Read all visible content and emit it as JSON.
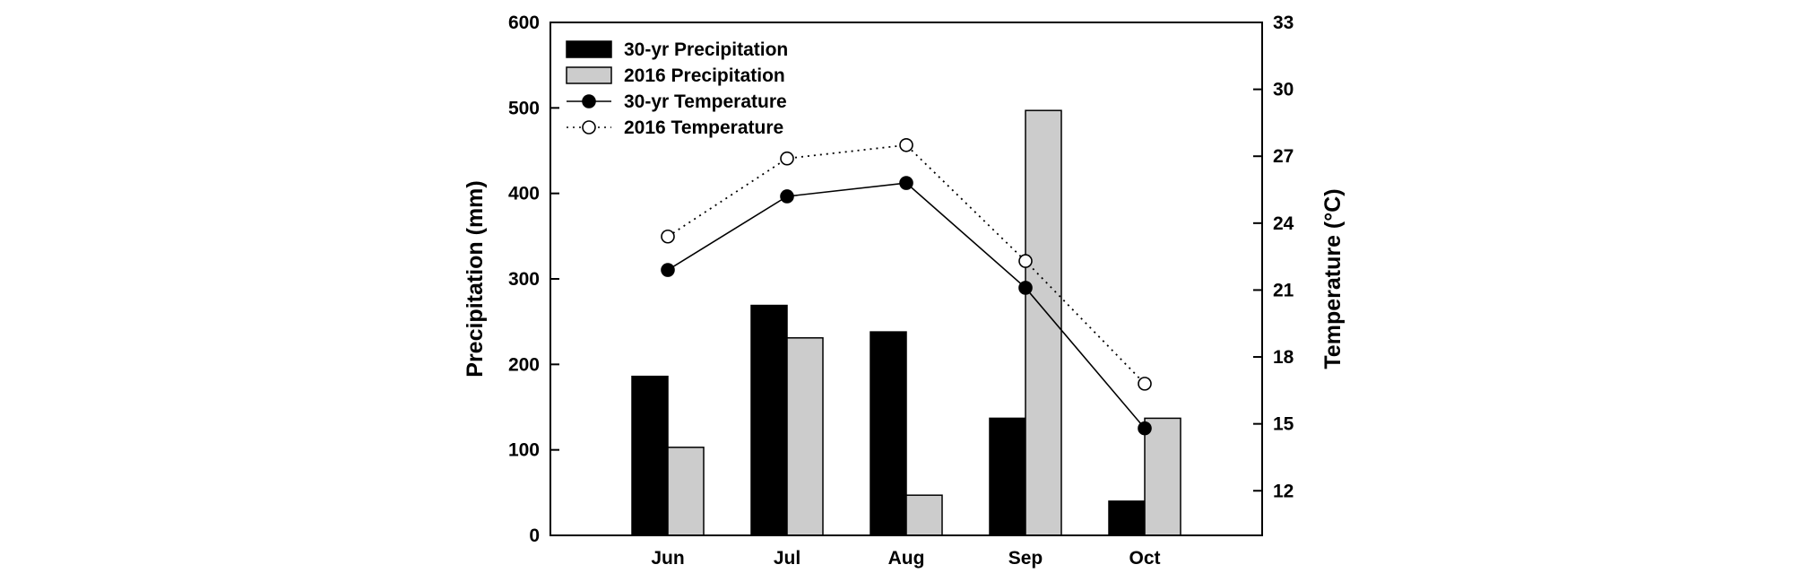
{
  "chart_data": {
    "type": "bar",
    "categories": [
      "Jun",
      "Jul",
      "Aug",
      "Sep",
      "Oct"
    ],
    "series": [
      {
        "name": "30-yr Precipitation",
        "type": "bar",
        "axis": "left",
        "color": "#000000",
        "values": [
          186,
          269,
          238,
          137,
          40
        ]
      },
      {
        "name": "2016 Precipitation",
        "type": "bar",
        "axis": "left",
        "color": "#cccccc",
        "values": [
          103,
          231,
          47,
          497,
          137
        ]
      },
      {
        "name": "30-yr Temperature",
        "type": "line",
        "axis": "right",
        "color": "#000000",
        "line_style": "solid",
        "marker": "filled-circle",
        "values": [
          21.9,
          25.2,
          25.8,
          21.1,
          14.8
        ]
      },
      {
        "name": "2016 Temperature",
        "type": "line",
        "axis": "right",
        "color": "#000000",
        "line_style": "dotted",
        "marker": "open-circle",
        "values": [
          23.4,
          26.9,
          27.5,
          22.3,
          16.8
        ]
      }
    ],
    "ylabel": "Precipitation (mm)",
    "ylim": [
      0,
      600
    ],
    "yticks": [
      "0",
      "100",
      "200",
      "300",
      "400",
      "500",
      "600"
    ],
    "y2label": "Temperature (°C)",
    "y2lim": [
      10,
      33
    ],
    "y2ticks": [
      "12",
      "15",
      "18",
      "21",
      "24",
      "27",
      "30",
      "33"
    ],
    "grid": false,
    "legend_position": "top-left"
  }
}
